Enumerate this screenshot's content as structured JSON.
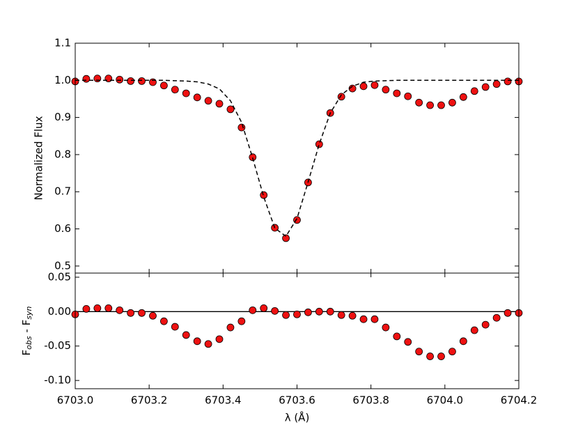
{
  "chart_data": [
    {
      "type": "scatter",
      "ylabel": "Normalized Flux",
      "x": [
        6703.0,
        6703.03,
        6703.06,
        6703.09,
        6703.12,
        6703.15,
        6703.18,
        6703.21,
        6703.24,
        6703.27,
        6703.3,
        6703.33,
        6703.36,
        6703.39,
        6703.42,
        6703.45,
        6703.48,
        6703.51,
        6703.54,
        6703.57,
        6703.6,
        6703.63,
        6703.66,
        6703.69,
        6703.72,
        6703.75,
        6703.78,
        6703.81,
        6703.84,
        6703.87,
        6703.9,
        6703.93,
        6703.96,
        6703.99,
        6704.02,
        6704.05,
        6704.08,
        6704.11,
        6704.14,
        6704.17,
        6704.2
      ],
      "series": [
        {
          "color": "#ee1111",
          "marker": "circle",
          "values": [
            0.997,
            1.004,
            1.005,
            1.005,
            1.002,
            0.998,
            0.998,
            0.995,
            0.986,
            0.975,
            0.965,
            0.954,
            0.945,
            0.937,
            0.922,
            0.873,
            0.793,
            0.691,
            0.603,
            0.575,
            0.624,
            0.725,
            0.828,
            0.912,
            0.956,
            0.978,
            0.984,
            0.987,
            0.975,
            0.965,
            0.957,
            0.94,
            0.933,
            0.933,
            0.94,
            0.955,
            0.971,
            0.982,
            0.99,
            0.997,
            0.997
          ]
        },
        {
          "color": "#000000",
          "line": "dashed",
          "values": [
            1.0,
            1.0,
            1.0,
            1.0,
            1.0,
            1.0,
            1.0,
            1.0,
            1.0,
            0.999,
            0.998,
            0.996,
            0.99,
            0.977,
            0.945,
            0.887,
            0.791,
            0.686,
            0.602,
            0.58,
            0.628,
            0.726,
            0.828,
            0.912,
            0.961,
            0.984,
            0.995,
            0.998,
            0.999,
            1.0,
            1.0,
            1.0,
            1.0,
            1.0,
            1.0,
            1.0,
            1.0,
            1.0,
            1.0,
            1.0,
            1.0
          ]
        }
      ],
      "xlim": [
        6703.0,
        6704.2
      ],
      "xticks": [
        6703.0,
        6703.2,
        6703.4,
        6703.6,
        6703.8,
        6704.0,
        6704.2
      ],
      "ylim": [
        0.481,
        1.1
      ],
      "yticks": [
        0.5,
        0.6,
        0.7,
        0.8,
        0.9,
        {
          "value": 1.0,
          "label": "1.0"
        },
        1.1
      ]
    },
    {
      "type": "scatter",
      "ylabel_parts": [
        "F",
        "obs",
        " - F",
        "syn"
      ],
      "xlabel": "λ (Å)",
      "x": [
        6703.0,
        6703.03,
        6703.06,
        6703.09,
        6703.12,
        6703.15,
        6703.18,
        6703.21,
        6703.24,
        6703.27,
        6703.3,
        6703.33,
        6703.36,
        6703.39,
        6703.42,
        6703.45,
        6703.48,
        6703.51,
        6703.54,
        6703.57,
        6703.6,
        6703.63,
        6703.66,
        6703.69,
        6703.72,
        6703.75,
        6703.78,
        6703.81,
        6703.84,
        6703.87,
        6703.9,
        6703.93,
        6703.96,
        6703.99,
        6704.02,
        6704.05,
        6704.08,
        6704.11,
        6704.14,
        6704.17,
        6704.2
      ],
      "series": [
        {
          "color": "#ee1111",
          "marker": "circle",
          "values": [
            -0.004,
            0.004,
            0.005,
            0.005,
            0.002,
            -0.002,
            -0.002,
            -0.006,
            -0.014,
            -0.022,
            -0.034,
            -0.043,
            -0.047,
            -0.04,
            -0.023,
            -0.014,
            0.002,
            0.005,
            0.001,
            -0.005,
            -0.004,
            -0.001,
            0,
            0,
            -0.005,
            -0.006,
            -0.011,
            -0.011,
            -0.023,
            -0.036,
            -0.044,
            -0.058,
            -0.065,
            -0.065,
            -0.058,
            -0.043,
            -0.027,
            -0.019,
            -0.009,
            -0.002,
            -0.002
          ]
        }
      ],
      "hline": 0,
      "xlim": [
        6703.0,
        6704.2
      ],
      "xticks": [
        {
          "value": 6703.0,
          "label": "6703.0"
        },
        {
          "value": 6703.2,
          "label": "6703.2"
        },
        {
          "value": 6703.4,
          "label": "6703.4"
        },
        {
          "value": 6703.6,
          "label": "6703.6"
        },
        {
          "value": 6703.8,
          "label": "6703.8"
        },
        {
          "value": 6704.0,
          "label": "6704.0"
        },
        {
          "value": 6704.2,
          "label": "6704.2"
        }
      ],
      "ylim": [
        -0.112,
        0.056
      ],
      "yticks": [
        0.05,
        {
          "value": 0,
          "label": "0.00"
        },
        -0.05,
        {
          "value": -0.1,
          "label": "-0.10"
        }
      ]
    }
  ]
}
